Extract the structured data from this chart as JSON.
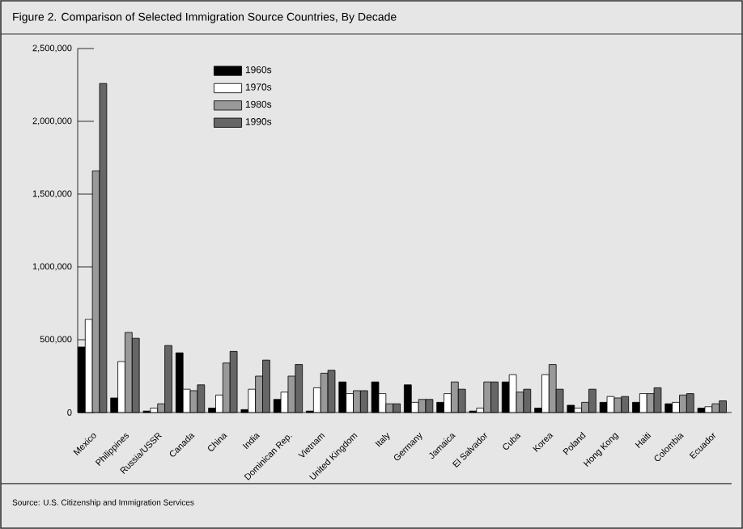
{
  "chart_data": {
    "type": "bar",
    "title": "Figure 2. Comparison of Selected Immigration Source Countries, By Decade",
    "categories": [
      "Mexico",
      "Philippines",
      "Russia/USSR",
      "Canada",
      "China",
      "India",
      "Dominican Rep.",
      "Vietnam",
      "United Kingdom",
      "Italy",
      "Germany",
      "Jamaica",
      "El Salvador",
      "Cuba",
      "Korea",
      "Poland",
      "Hong Kong",
      "Haiti",
      "Colombia",
      "Ecuador"
    ],
    "series": [
      {
        "name": "1960s",
        "color": "#000000",
        "values": [
          450000,
          100000,
          10000,
          410000,
          30000,
          20000,
          90000,
          10000,
          210000,
          210000,
          190000,
          70000,
          10000,
          210000,
          30000,
          50000,
          70000,
          70000,
          60000,
          30000
        ]
      },
      {
        "name": "1970s",
        "color": "#ffffff",
        "values": [
          640000,
          350000,
          30000,
          160000,
          120000,
          160000,
          140000,
          170000,
          130000,
          130000,
          70000,
          130000,
          30000,
          260000,
          260000,
          30000,
          110000,
          130000,
          70000,
          40000
        ]
      },
      {
        "name": "1980s",
        "color": "#999999",
        "values": [
          1660000,
          550000,
          60000,
          150000,
          340000,
          250000,
          250000,
          270000,
          150000,
          60000,
          90000,
          210000,
          210000,
          140000,
          330000,
          70000,
          100000,
          130000,
          120000,
          60000
        ]
      },
      {
        "name": "1990s",
        "color": "#666666",
        "values": [
          2260000,
          510000,
          460000,
          190000,
          420000,
          360000,
          330000,
          290000,
          150000,
          60000,
          90000,
          160000,
          210000,
          160000,
          160000,
          160000,
          110000,
          170000,
          130000,
          80000
        ]
      }
    ],
    "ylim": [
      0,
      2500000
    ],
    "yticks": [
      0,
      {
        "value": 500000,
        "label": "500,000"
      },
      {
        "value": 1000000,
        "label": "1,000,000"
      },
      {
        "value": 1500000,
        "label": "1,500,000"
      },
      {
        "value": 2000000,
        "label": "2,000,000"
      },
      {
        "value": 2500000,
        "label": "2,500,000"
      }
    ],
    "legend": "top left",
    "annotations": [
      "Source: U.S. Citizenship and Immigration Services"
    ]
  }
}
